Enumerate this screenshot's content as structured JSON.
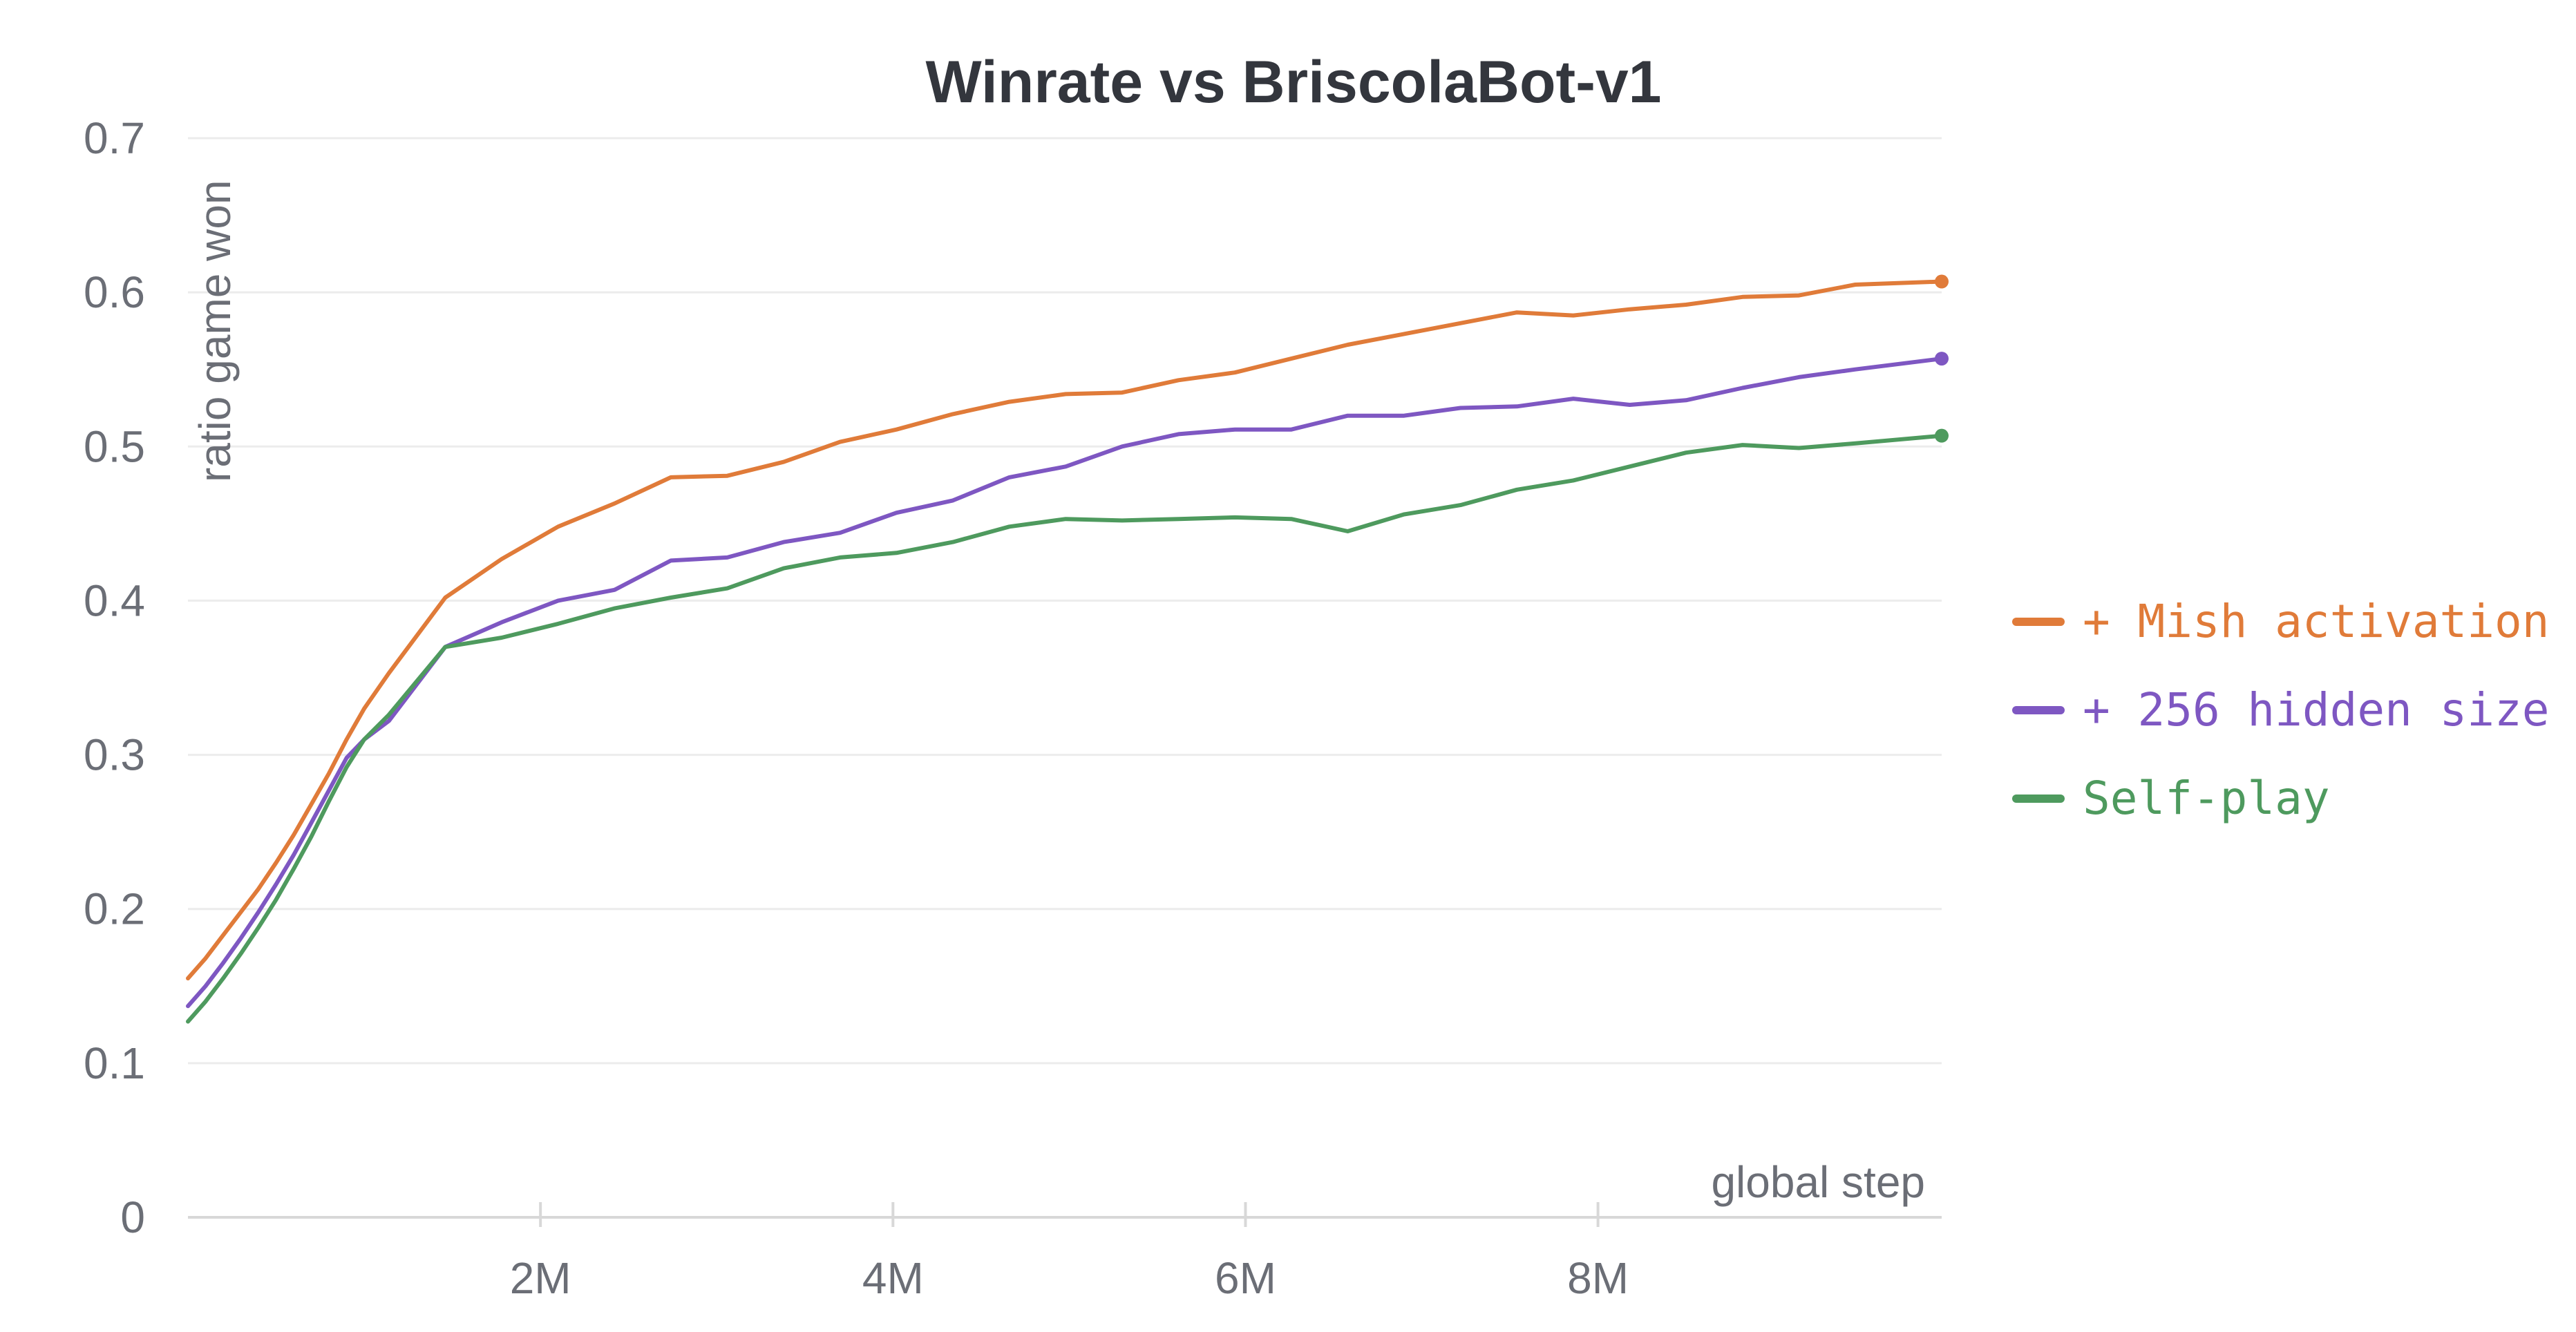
{
  "chart_data": {
    "type": "line",
    "title": "Winrate vs BriscolaBot-v1",
    "xlabel": "global step",
    "ylabel": "ratio game won",
    "xlim": [
      0,
      9950000
    ],
    "ylim": [
      0,
      0.7
    ],
    "x_ticks": [
      {
        "value": 2000000,
        "label": "2M"
      },
      {
        "value": 4000000,
        "label": "4M"
      },
      {
        "value": 6000000,
        "label": "6M"
      },
      {
        "value": 8000000,
        "label": "8M"
      }
    ],
    "y_ticks": [
      {
        "value": 0,
        "label": "0"
      },
      {
        "value": 0.1,
        "label": "0.1"
      },
      {
        "value": 0.2,
        "label": "0.2"
      },
      {
        "value": 0.3,
        "label": "0.3"
      },
      {
        "value": 0.4,
        "label": "0.4"
      },
      {
        "value": 0.5,
        "label": "0.5"
      },
      {
        "value": 0.6,
        "label": "0.6"
      },
      {
        "value": 0.7,
        "label": "0.7"
      }
    ],
    "grid": true,
    "legend_position": "right",
    "series": [
      {
        "name": "+ Mish activation",
        "color": "#e07b39",
        "points": [
          [
            0,
            0.155
          ],
          [
            100000,
            0.168
          ],
          [
            200000,
            0.183
          ],
          [
            300000,
            0.198
          ],
          [
            400000,
            0.213
          ],
          [
            500000,
            0.23
          ],
          [
            600000,
            0.248
          ],
          [
            700000,
            0.268
          ],
          [
            800000,
            0.288
          ],
          [
            900000,
            0.31
          ],
          [
            1000000,
            0.33
          ],
          [
            1140000,
            0.353
          ],
          [
            1460000,
            0.402
          ],
          [
            1780000,
            0.427
          ],
          [
            2100000,
            0.448
          ],
          [
            2420000,
            0.463
          ],
          [
            2740000,
            0.48
          ],
          [
            3060000,
            0.481
          ],
          [
            3380000,
            0.49
          ],
          [
            3700000,
            0.503
          ],
          [
            4020000,
            0.511
          ],
          [
            4340000,
            0.521
          ],
          [
            4660000,
            0.529
          ],
          [
            4980000,
            0.534
          ],
          [
            5300000,
            0.535
          ],
          [
            5620000,
            0.543
          ],
          [
            5940000,
            0.548
          ],
          [
            6260000,
            0.557
          ],
          [
            6580000,
            0.566
          ],
          [
            6900000,
            0.573
          ],
          [
            7220000,
            0.58
          ],
          [
            7540000,
            0.587
          ],
          [
            7860000,
            0.585
          ],
          [
            8180000,
            0.589
          ],
          [
            8500000,
            0.592
          ],
          [
            8820000,
            0.597
          ],
          [
            9140000,
            0.598
          ],
          [
            9460000,
            0.605
          ],
          [
            9950000,
            0.607
          ]
        ]
      },
      {
        "name": "+ 256 hidden size",
        "color": "#7e57c2",
        "points": [
          [
            0,
            0.137
          ],
          [
            100000,
            0.15
          ],
          [
            200000,
            0.165
          ],
          [
            300000,
            0.181
          ],
          [
            400000,
            0.198
          ],
          [
            500000,
            0.216
          ],
          [
            600000,
            0.235
          ],
          [
            700000,
            0.256
          ],
          [
            800000,
            0.277
          ],
          [
            900000,
            0.298
          ],
          [
            1000000,
            0.31
          ],
          [
            1140000,
            0.322
          ],
          [
            1460000,
            0.37
          ],
          [
            1780000,
            0.386
          ],
          [
            2100000,
            0.4
          ],
          [
            2420000,
            0.407
          ],
          [
            2740000,
            0.426
          ],
          [
            3060000,
            0.428
          ],
          [
            3380000,
            0.438
          ],
          [
            3700000,
            0.444
          ],
          [
            4020000,
            0.457
          ],
          [
            4340000,
            0.465
          ],
          [
            4660000,
            0.48
          ],
          [
            4980000,
            0.487
          ],
          [
            5300000,
            0.5
          ],
          [
            5620000,
            0.508
          ],
          [
            5940000,
            0.511
          ],
          [
            6260000,
            0.511
          ],
          [
            6580000,
            0.52
          ],
          [
            6900000,
            0.52
          ],
          [
            7220000,
            0.525
          ],
          [
            7540000,
            0.526
          ],
          [
            7860000,
            0.531
          ],
          [
            8180000,
            0.527
          ],
          [
            8500000,
            0.53
          ],
          [
            8820000,
            0.538
          ],
          [
            9140000,
            0.545
          ],
          [
            9460000,
            0.55
          ],
          [
            9950000,
            0.557
          ]
        ]
      },
      {
        "name": "Self-play",
        "color": "#4e9a5e",
        "points": [
          [
            0,
            0.127
          ],
          [
            100000,
            0.14
          ],
          [
            200000,
            0.155
          ],
          [
            300000,
            0.171
          ],
          [
            400000,
            0.188
          ],
          [
            500000,
            0.206
          ],
          [
            600000,
            0.226
          ],
          [
            700000,
            0.247
          ],
          [
            800000,
            0.27
          ],
          [
            900000,
            0.292
          ],
          [
            1000000,
            0.31
          ],
          [
            1140000,
            0.326
          ],
          [
            1460000,
            0.37
          ],
          [
            1780000,
            0.376
          ],
          [
            2100000,
            0.385
          ],
          [
            2420000,
            0.395
          ],
          [
            2740000,
            0.402
          ],
          [
            3060000,
            0.408
          ],
          [
            3380000,
            0.421
          ],
          [
            3700000,
            0.428
          ],
          [
            4020000,
            0.431
          ],
          [
            4340000,
            0.438
          ],
          [
            4660000,
            0.448
          ],
          [
            4980000,
            0.453
          ],
          [
            5300000,
            0.452
          ],
          [
            5620000,
            0.453
          ],
          [
            5940000,
            0.454
          ],
          [
            6260000,
            0.453
          ],
          [
            6580000,
            0.445
          ],
          [
            6900000,
            0.456
          ],
          [
            7220000,
            0.462
          ],
          [
            7540000,
            0.472
          ],
          [
            7860000,
            0.478
          ],
          [
            8180000,
            0.487
          ],
          [
            8500000,
            0.496
          ],
          [
            8820000,
            0.501
          ],
          [
            9140000,
            0.499
          ],
          [
            9460000,
            0.502
          ],
          [
            9950000,
            0.507
          ]
        ]
      }
    ]
  }
}
